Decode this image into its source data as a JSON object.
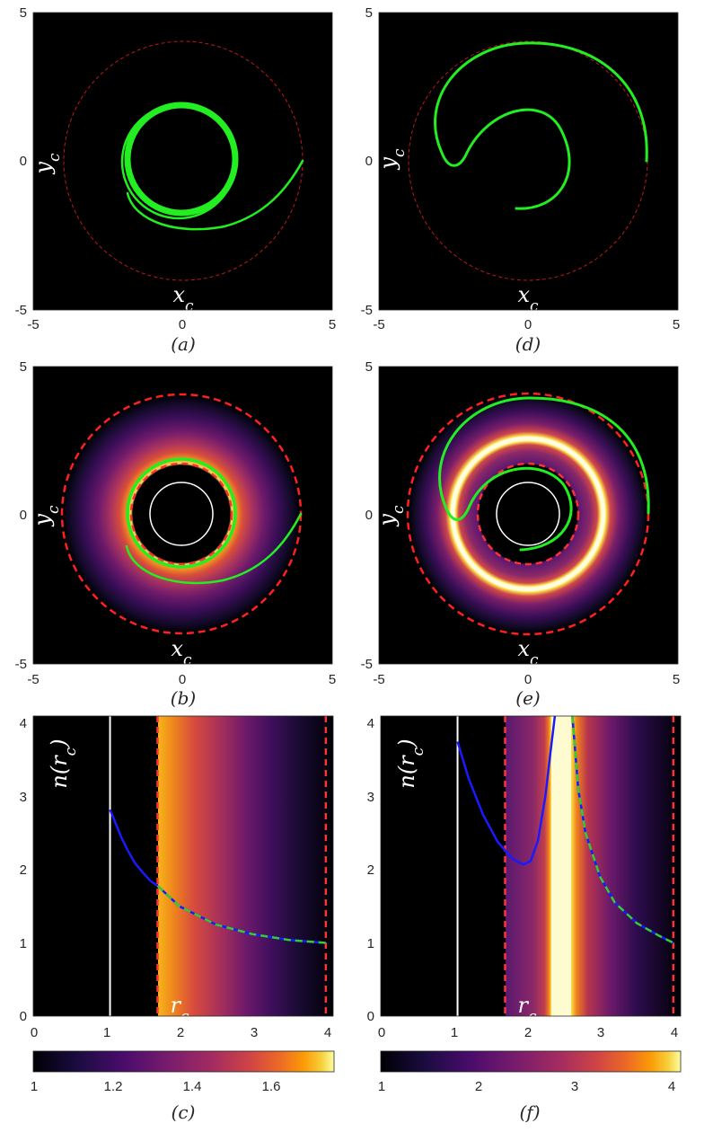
{
  "panels": {
    "a": {
      "caption": "(a)",
      "type": "line",
      "background": "black",
      "xlabel": "x_c",
      "ylabel": "y_c",
      "xlim": [
        -5,
        5
      ],
      "ylim": [
        -5,
        5
      ],
      "xticks": [
        "-5",
        "0",
        "5"
      ],
      "yticks": [
        "-5",
        "0",
        "5"
      ],
      "outer_circle_r": 4.0,
      "trajectory": "green spiral from (4,0) winding inward onto a circle of radius ~1.8"
    },
    "b": {
      "caption": "(b)",
      "type": "heatmap",
      "background": "density",
      "xlabel": "x_c",
      "ylabel": "y_c",
      "xlim": [
        -5,
        5
      ],
      "ylim": [
        -5,
        5
      ],
      "xticks": [
        "-5",
        "0",
        "5"
      ],
      "yticks": [
        "-5",
        "0",
        "5"
      ],
      "outer_circle_r": 4.0,
      "inner_circle_r": 1.05,
      "critical_circle_r": 1.7
    },
    "c": {
      "caption": "(c)",
      "type": "line",
      "xlabel": "r_c",
      "ylabel": "n(r_c)",
      "xlim": [
        0,
        4.1
      ],
      "ylim": [
        0,
        4.1
      ],
      "xticks": [
        "0",
        "1",
        "2",
        "3",
        "4"
      ],
      "yticks": [
        "0",
        "1",
        "2",
        "3",
        "4"
      ],
      "colorbar": {
        "min": 1,
        "max": 1.76,
        "ticks": [
          "1",
          "1.2",
          "1.4",
          "1.6"
        ]
      }
    },
    "d": {
      "caption": "(d)",
      "type": "line",
      "background": "black",
      "xlabel": "x_c",
      "ylabel": "y_c",
      "xlim": [
        -5,
        5
      ],
      "ylim": [
        -5,
        5
      ],
      "xticks": [
        "-5",
        "0",
        "5"
      ],
      "yticks": [
        "-5",
        "0",
        "5"
      ],
      "outer_circle_r": 4.0
    },
    "e": {
      "caption": "(e)",
      "type": "heatmap",
      "background": "density",
      "xlabel": "x_c",
      "ylabel": "y_c",
      "xlim": [
        -5,
        5
      ],
      "ylim": [
        -5,
        5
      ],
      "xticks": [
        "-5",
        "0",
        "5"
      ],
      "yticks": [
        "-5",
        "0",
        "5"
      ],
      "outer_circle_r": 4.0,
      "inner_circle_r": 1.05,
      "critical_circle_r": 1.7,
      "ring_r": 2.5
    },
    "f": {
      "caption": "(f)",
      "type": "line",
      "xlabel": "r_c",
      "ylabel": "n(r_c)",
      "xlim": [
        0,
        4.1
      ],
      "ylim": [
        0,
        4.1
      ],
      "xticks": [
        "0",
        "1",
        "2",
        "3",
        "4"
      ],
      "yticks": [
        "0",
        "1",
        "2",
        "3",
        "4"
      ],
      "colorbar": {
        "min": 1,
        "max": 4.1,
        "ticks": [
          "1",
          "2",
          "3",
          "4"
        ]
      }
    }
  },
  "chart_data": [
    {
      "type": "line",
      "panel": "c",
      "series": [
        {
          "color": "#1a1aff",
          "style": "solid",
          "x": [
            1.05,
            1.1,
            1.2,
            1.3,
            1.4,
            1.5,
            1.6,
            1.7
          ],
          "y": [
            2.82,
            2.7,
            2.45,
            2.25,
            2.08,
            1.96,
            1.85,
            1.78
          ]
        },
        {
          "color": "#33cc33",
          "style": "dashed",
          "x": [
            1.7,
            2.0,
            2.5,
            3.0,
            3.5,
            4.0
          ],
          "y": [
            1.78,
            1.5,
            1.25,
            1.12,
            1.04,
            1.0
          ]
        }
      ],
      "vlines": [
        {
          "x": 1.05,
          "color": "#ffffff",
          "style": "solid"
        },
        {
          "x": 1.7,
          "color": "#ff3333",
          "style": "dashed"
        },
        {
          "x": 4.0,
          "color": "#ff3333",
          "style": "dashed"
        }
      ]
    },
    {
      "type": "line",
      "panel": "f",
      "series": [
        {
          "color": "#1a1aff",
          "style": "solid",
          "x": [
            1.05,
            1.2,
            1.4,
            1.6,
            1.8,
            1.95,
            2.05,
            2.15,
            2.25,
            2.32,
            2.38
          ],
          "y": [
            3.75,
            3.25,
            2.75,
            2.38,
            2.15,
            2.07,
            2.12,
            2.4,
            3.0,
            3.6,
            4.1
          ]
        },
        {
          "color": "#33cc33",
          "style": "dashed",
          "x": [
            2.62,
            2.7,
            2.8,
            3.0,
            3.2,
            3.5,
            3.8,
            4.0
          ],
          "y": [
            4.1,
            3.1,
            2.5,
            1.9,
            1.55,
            1.27,
            1.1,
            1.0
          ]
        }
      ],
      "vlines": [
        {
          "x": 1.05,
          "color": "#ffffff",
          "style": "solid"
        },
        {
          "x": 1.7,
          "color": "#ff3333",
          "style": "dashed"
        },
        {
          "x": 4.0,
          "color": "#ff3333",
          "style": "dashed"
        }
      ]
    }
  ]
}
